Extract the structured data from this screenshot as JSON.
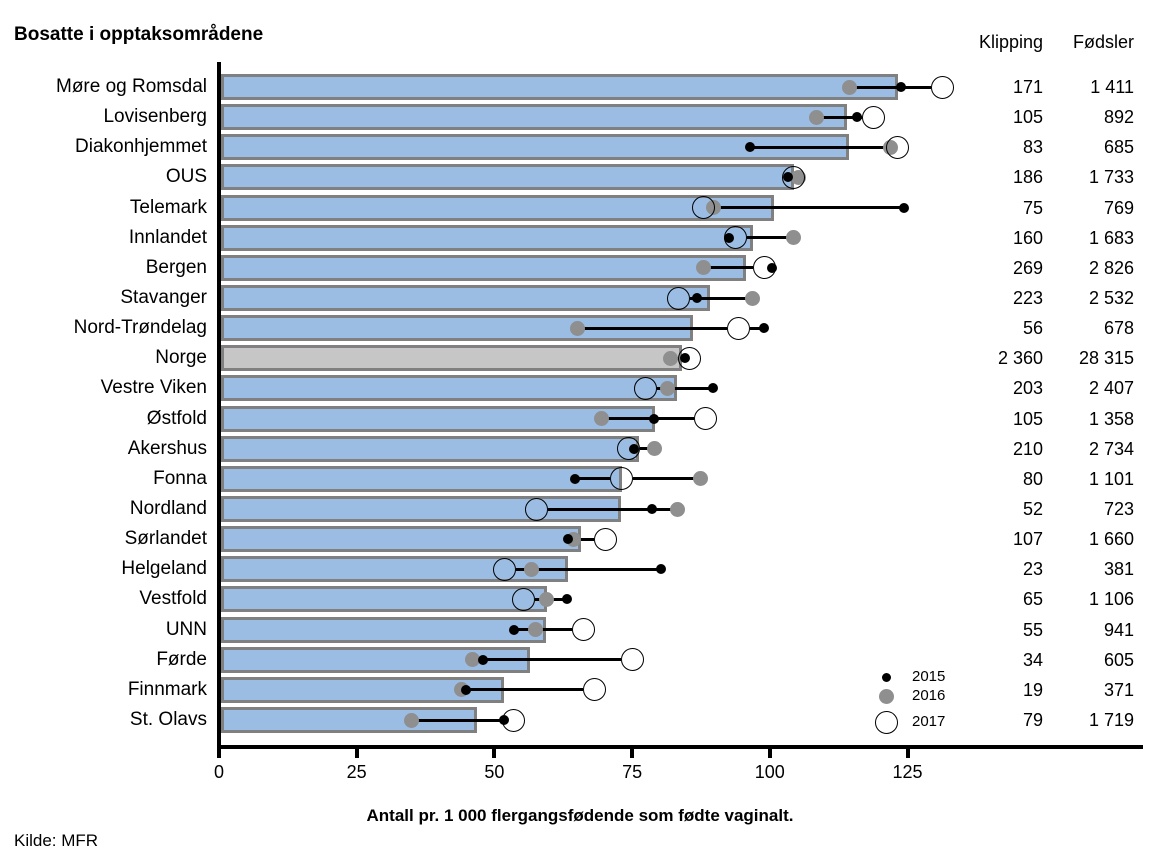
{
  "title": "Bosatte i opptaksområdene",
  "source_note": "Kilde: MFR",
  "table_headers": {
    "klipping": "Klipping",
    "fodsler": "Fødsler"
  },
  "legend": {
    "items": [
      {
        "label": "2015",
        "marker": "small-black-dot"
      },
      {
        "label": "2016",
        "marker": "gray-dot"
      },
      {
        "label": "2017",
        "marker": "open-circle"
      }
    ]
  },
  "colors": {
    "bar_fill": "#9BBDE4",
    "bar_border": "#808080",
    "norway_bar_fill": "#C6C6C6",
    "dot_2015": "#000000",
    "dot_2016": "#8F8F8F",
    "circle_2017_stroke": "#000000",
    "axis": "#000000"
  },
  "chart_data": {
    "type": "bar",
    "orientation": "horizontal",
    "title": "Bosatte i opptaksområdene",
    "xlabel": "Antall pr. 1 000  flergangsfødende som fødte vaginalt.",
    "xlim": [
      0,
      135
    ],
    "xticks": [
      0,
      25,
      50,
      75,
      100,
      125
    ],
    "grid": false,
    "legend_position": "inside-right-bottom",
    "highlight_category": "Norge",
    "categories": [
      "Møre og Romsdal",
      "Lovisenberg",
      "Diakonhjemmet",
      "OUS",
      "Telemark",
      "Innlandet",
      "Bergen",
      "Stavanger",
      "Nord-Trøndelag",
      "Norge",
      "Vestre Viken",
      "Østfold",
      "Akershus",
      "Fonna",
      "Nordland",
      "Sørlandet",
      "Helgeland",
      "Vestfold",
      "UNN",
      "Førde",
      "Finnmark",
      "St. Olavs"
    ],
    "bar_values": [
      123.2,
      114.1,
      114.4,
      104.4,
      100.8,
      97.0,
      95.6,
      89.2,
      86.0,
      84.1,
      83.1,
      79.2,
      76.2,
      73.2,
      73.0,
      65.7,
      63.3,
      59.5,
      59.3,
      56.4,
      51.7,
      46.8
    ],
    "series": [
      {
        "name": "2015",
        "marker": "small-black-dot",
        "values": [
          123.9,
          115.8,
          96.4,
          103.3,
          124.3,
          92.6,
          100.4,
          86.8,
          98.9,
          84.6,
          89.6,
          79.0,
          75.3,
          64.7,
          78.6,
          63.3,
          80.2,
          63.1,
          53.5,
          47.9,
          44.8,
          51.8
        ]
      },
      {
        "name": "2016",
        "marker": "gray-dot",
        "values": [
          114.4,
          108.5,
          122.0,
          105.3,
          89.8,
          104.3,
          88.0,
          96.9,
          65.0,
          82.0,
          81.4,
          69.5,
          79.0,
          87.4,
          83.2,
          64.4,
          56.8,
          59.5,
          57.5,
          46.0,
          44.1,
          35.0
        ]
      },
      {
        "name": "2017",
        "marker": "open-circle",
        "values": [
          131.3,
          118.9,
          123.2,
          104.3,
          88.0,
          93.8,
          99.0,
          83.5,
          94.4,
          85.4,
          77.5,
          88.4,
          74.4,
          73.1,
          57.7,
          70.1,
          51.8,
          55.3,
          66.2,
          75.0,
          68.1,
          53.5
        ]
      }
    ],
    "table": {
      "klipping": [
        "171",
        "105",
        "83",
        "186",
        "75",
        "160",
        "269",
        "223",
        "56",
        "2 360",
        "203",
        "105",
        "210",
        "80",
        "52",
        "107",
        "23",
        "65",
        "55",
        "34",
        "19",
        "79"
      ],
      "fodsler": [
        "1 411",
        "892",
        "685",
        "1 733",
        "769",
        "1 683",
        "2 826",
        "2 532",
        "678",
        "28 315",
        "2 407",
        "1 358",
        "2 734",
        "1 101",
        "723",
        "1 660",
        "381",
        "1 106",
        "941",
        "605",
        "371",
        "1 719"
      ]
    }
  }
}
